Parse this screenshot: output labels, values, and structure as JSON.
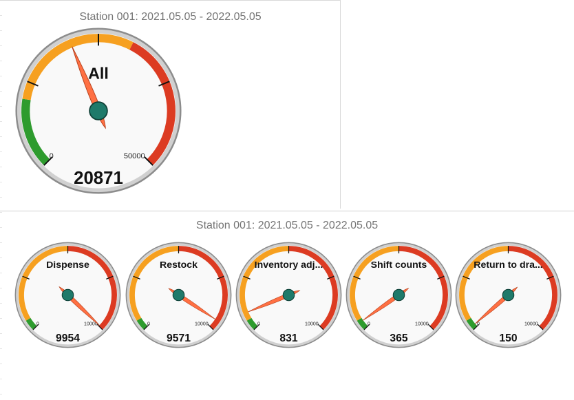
{
  "panels": [
    {
      "title": "Station 001: 2021.05.05 - 2022.05.05"
    },
    {
      "title": "Station 001: 2021.05.05 - 2022.05.05"
    }
  ],
  "colors": {
    "green": "#2e9b2e",
    "orange": "#f6a020",
    "red": "#dc3b22",
    "needle": "#ff7043",
    "hub": "#1f7a6a",
    "face": "#f9f9f9",
    "rim": "#d0d0d0"
  },
  "chart_data": [
    {
      "type": "gauge",
      "label": "All",
      "value": 20871,
      "min": 0,
      "max": 50000,
      "min_label": "0",
      "max_label": "50000",
      "bands": [
        {
          "from": 0,
          "to": 10000,
          "color": "green"
        },
        {
          "from": 10000,
          "to": 30000,
          "color": "orange"
        },
        {
          "from": 30000,
          "to": 50000,
          "color": "red"
        }
      ]
    },
    {
      "type": "gauge",
      "label": "Dispense",
      "value": 9954,
      "min": 0,
      "max": 10000,
      "min_label": "0",
      "max_label": "10000",
      "bands": [
        {
          "from": 0,
          "to": 500,
          "color": "green"
        },
        {
          "from": 500,
          "to": 5000,
          "color": "orange"
        },
        {
          "from": 5000,
          "to": 10000,
          "color": "red"
        }
      ]
    },
    {
      "type": "gauge",
      "label": "Restock",
      "value": 9571,
      "min": 0,
      "max": 10000,
      "min_label": "0",
      "max_label": "10000",
      "bands": [
        {
          "from": 0,
          "to": 500,
          "color": "green"
        },
        {
          "from": 500,
          "to": 5000,
          "color": "orange"
        },
        {
          "from": 5000,
          "to": 10000,
          "color": "red"
        }
      ]
    },
    {
      "type": "gauge",
      "label": "Inventory adj...",
      "value": 831,
      "min": 0,
      "max": 10000,
      "min_label": "0",
      "max_label": "10000",
      "bands": [
        {
          "from": 0,
          "to": 500,
          "color": "green"
        },
        {
          "from": 500,
          "to": 5000,
          "color": "orange"
        },
        {
          "from": 5000,
          "to": 10000,
          "color": "red"
        }
      ]
    },
    {
      "type": "gauge",
      "label": "Shift counts",
      "value": 365,
      "min": 0,
      "max": 10000,
      "min_label": "0",
      "max_label": "10000",
      "bands": [
        {
          "from": 0,
          "to": 500,
          "color": "green"
        },
        {
          "from": 500,
          "to": 5000,
          "color": "orange"
        },
        {
          "from": 5000,
          "to": 10000,
          "color": "red"
        }
      ]
    },
    {
      "type": "gauge",
      "label": "Return to dra...",
      "value": 150,
      "min": 0,
      "max": 10000,
      "min_label": "0",
      "max_label": "10000",
      "bands": [
        {
          "from": 0,
          "to": 500,
          "color": "green"
        },
        {
          "from": 500,
          "to": 5000,
          "color": "orange"
        },
        {
          "from": 5000,
          "to": 10000,
          "color": "red"
        }
      ]
    }
  ]
}
